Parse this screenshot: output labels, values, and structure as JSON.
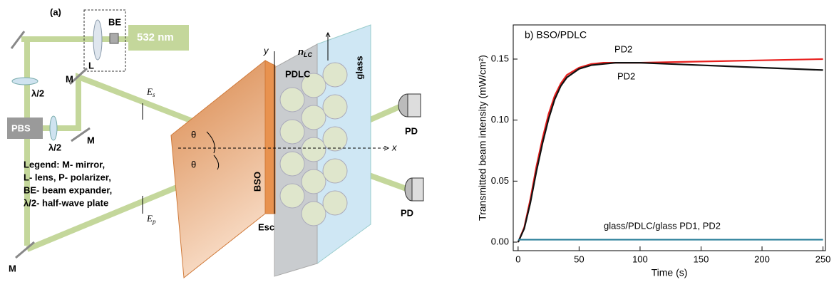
{
  "diagram": {
    "panel": "(a)",
    "be": "BE",
    "laser": "532 nm",
    "lens": "L",
    "half_wave_1": "λ/2",
    "half_wave_2": "λ/2",
    "mirror_1": "M",
    "mirror_2": "M",
    "mirror_3": "M",
    "pbs": "PBS",
    "legend": [
      "Legend: M- mirror,",
      "L- lens, P- polarizer,",
      "BE- beam expander,",
      "λ/2- half-wave plate"
    ],
    "es": {
      "main": "E",
      "sub": "s"
    },
    "ep": {
      "main": "E",
      "sub": "p"
    },
    "theta_1": "θ",
    "theta_2": "θ",
    "y_axis": "y",
    "x_axis": "x",
    "nlc": {
      "main": "n",
      "sub": "LC"
    },
    "pdlc": "PDLC",
    "glass": "glass",
    "pd_1": "PD",
    "pd_2": "PD",
    "bso": "BSO",
    "esc": "Esc"
  },
  "chart_data": {
    "type": "line",
    "title": "b) BSO/PDLC",
    "x_label": "Time (s)",
    "y_label": "Transmitted beam intensity (mW/cm²)",
    "xlim": [
      -4,
      252
    ],
    "ylim": [
      -0.007,
      0.178
    ],
    "xticks": [
      0,
      50,
      100,
      150,
      200,
      250
    ],
    "yticks": [
      {
        "value": 0,
        "label": "0.00"
      },
      {
        "value": 0.05,
        "label": "0.05"
      },
      {
        "value": 0.1,
        "label": "0.10"
      },
      {
        "value": 0.15,
        "label": "0.15"
      }
    ],
    "annotations": [
      "PD2",
      "PD2",
      "glass/PDLC/glass  PD1, PD2"
    ],
    "series": [
      {
        "color": "#e8201e",
        "x": [
          0,
          5,
          10,
          15,
          20,
          25,
          30,
          35,
          40,
          50,
          60,
          70,
          80,
          100,
          150,
          200,
          250
        ],
        "values": [
          0,
          0.012,
          0.035,
          0.062,
          0.085,
          0.105,
          0.12,
          0.13,
          0.137,
          0.143,
          0.146,
          0.147,
          0.147,
          0.147,
          0.148,
          0.149,
          0.15
        ]
      },
      {
        "color": "#111111",
        "x": [
          0,
          5,
          10,
          15,
          20,
          25,
          30,
          35,
          40,
          50,
          60,
          70,
          80,
          100,
          150,
          200,
          250
        ],
        "values": [
          0,
          0.011,
          0.032,
          0.058,
          0.081,
          0.101,
          0.117,
          0.128,
          0.135,
          0.142,
          0.145,
          0.146,
          0.147,
          0.147,
          0.145,
          0.143,
          0.141
        ]
      },
      {
        "color": "#2a7f9a",
        "x": [
          0,
          50,
          100,
          150,
          200,
          250
        ],
        "values": [
          0.002,
          0.002,
          0.002,
          0.002,
          0.002,
          0.002
        ]
      }
    ]
  }
}
